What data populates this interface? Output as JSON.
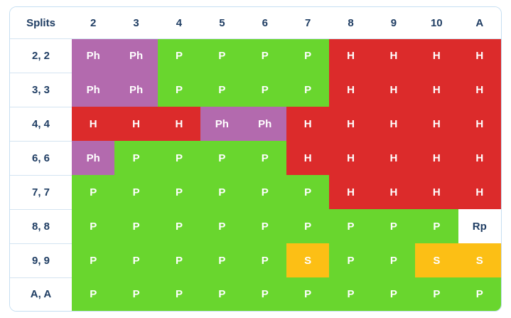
{
  "colors": {
    "P": "#69d62e",
    "Ph": "#b36aae",
    "H": "#dc2b2b",
    "S": "#fcbf15",
    "Rp": "#ffffff"
  },
  "table": {
    "corner": "Splits",
    "columns": [
      "2",
      "3",
      "4",
      "5",
      "6",
      "7",
      "8",
      "9",
      "10",
      "A"
    ],
    "rows": [
      {
        "label": "2, 2",
        "cells": [
          "Ph",
          "Ph",
          "P",
          "P",
          "P",
          "P",
          "H",
          "H",
          "H",
          "H"
        ]
      },
      {
        "label": "3, 3",
        "cells": [
          "Ph",
          "Ph",
          "P",
          "P",
          "P",
          "P",
          "H",
          "H",
          "H",
          "H"
        ]
      },
      {
        "label": "4, 4",
        "cells": [
          "H",
          "H",
          "H",
          "Ph",
          "Ph",
          "H",
          "H",
          "H",
          "H",
          "H"
        ]
      },
      {
        "label": "6, 6",
        "cells": [
          "Ph",
          "P",
          "P",
          "P",
          "P",
          "H",
          "H",
          "H",
          "H",
          "H"
        ]
      },
      {
        "label": "7, 7",
        "cells": [
          "P",
          "P",
          "P",
          "P",
          "P",
          "P",
          "H",
          "H",
          "H",
          "H"
        ]
      },
      {
        "label": "8, 8",
        "cells": [
          "P",
          "P",
          "P",
          "P",
          "P",
          "P",
          "P",
          "P",
          "P",
          "Rp"
        ]
      },
      {
        "label": "9, 9",
        "cells": [
          "P",
          "P",
          "P",
          "P",
          "P",
          "S",
          "P",
          "P",
          "S",
          "S"
        ]
      },
      {
        "label": "A, A",
        "cells": [
          "P",
          "P",
          "P",
          "P",
          "P",
          "P",
          "P",
          "P",
          "P",
          "P"
        ]
      }
    ]
  }
}
